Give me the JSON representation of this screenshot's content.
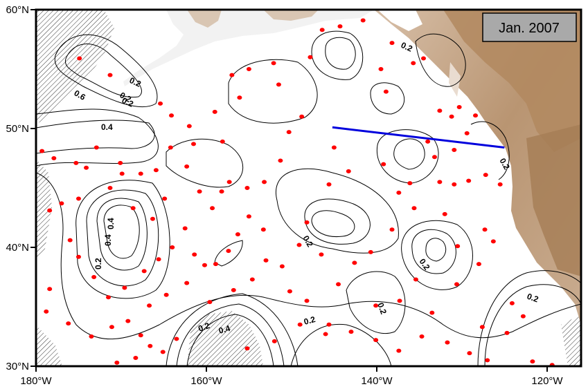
{
  "map": {
    "region": "North-East Pacific",
    "lon_range": [
      -180,
      -116
    ],
    "lat_range": [
      30,
      60
    ],
    "y_tick_labels": [
      "30°N",
      "40°N",
      "50°N",
      "60°N"
    ],
    "x_tick_labels": [
      "180°W",
      "160°W",
      "140°W",
      "120°W"
    ],
    "date_label": "Jan. 2007",
    "contour_labels": [
      "0.2",
      "0.4",
      "0.6",
      "0.2",
      "0.4",
      "0.4",
      "0.2",
      "0.2",
      "0.2",
      "0.2",
      "0.2",
      "0.2",
      "0.2",
      "0.2",
      "0.2",
      "0.2",
      "0.4"
    ],
    "colors": {
      "float": "#ff0000",
      "section_line": "#0000dd",
      "land": "#c8a98a",
      "land_high": "#9c7752",
      "date_box": "#a9a9a9"
    },
    "section_line": {
      "start": {
        "lon": -145.2,
        "lat": 50.1
      },
      "end": {
        "lon": -125.0,
        "lat": 48.4
      }
    },
    "float_positions": [
      {
        "lon": -174.9,
        "lat": 55.9
      },
      {
        "lon": -171.3,
        "lat": 54.5
      },
      {
        "lon": -165.4,
        "lat": 52.1
      },
      {
        "lon": -164.1,
        "lat": 51.1
      },
      {
        "lon": -179.3,
        "lat": 48.1
      },
      {
        "lon": -177.9,
        "lat": 47.5
      },
      {
        "lon": -175.3,
        "lat": 47.1
      },
      {
        "lon": -174.1,
        "lat": 46.7
      },
      {
        "lon": -172.9,
        "lat": 48.4
      },
      {
        "lon": -170.1,
        "lat": 47.1
      },
      {
        "lon": -169.9,
        "lat": 46.2
      },
      {
        "lon": -167.7,
        "lat": 46.2
      },
      {
        "lon": -165.9,
        "lat": 46.5
      },
      {
        "lon": -164.2,
        "lat": 48.4
      },
      {
        "lon": -162.0,
        "lat": 50.2
      },
      {
        "lon": -161.5,
        "lat": 48.7
      },
      {
        "lon": -159.0,
        "lat": 51.4
      },
      {
        "lon": -158.1,
        "lat": 48.9
      },
      {
        "lon": -157.0,
        "lat": 54.5
      },
      {
        "lon": -156.1,
        "lat": 52.6
      },
      {
        "lon": -155.0,
        "lat": 55.0
      },
      {
        "lon": -152.1,
        "lat": 55.5
      },
      {
        "lon": -151.5,
        "lat": 53.7
      },
      {
        "lon": -150.3,
        "lat": 49.7
      },
      {
        "lon": -148.8,
        "lat": 51.0
      },
      {
        "lon": -147.8,
        "lat": 56.0
      },
      {
        "lon": -146.4,
        "lat": 58.3
      },
      {
        "lon": -144.3,
        "lat": 58.6
      },
      {
        "lon": -141.6,
        "lat": 59.1
      },
      {
        "lon": -139.5,
        "lat": 55.0
      },
      {
        "lon": -138.9,
        "lat": 53.1
      },
      {
        "lon": -138.2,
        "lat": 57.2
      },
      {
        "lon": -135.7,
        "lat": 55.5
      },
      {
        "lon": -134.5,
        "lat": 55.9
      },
      {
        "lon": -132.6,
        "lat": 51.5
      },
      {
        "lon": -131.2,
        "lat": 51.0
      },
      {
        "lon": -130.3,
        "lat": 51.8
      },
      {
        "lon": -128.4,
        "lat": 51.1
      },
      {
        "lon": -129.4,
        "lat": 49.6
      },
      {
        "lon": -130.9,
        "lat": 48.2
      },
      {
        "lon": -133.2,
        "lat": 47.6
      },
      {
        "lon": -134.0,
        "lat": 48.9
      },
      {
        "lon": -136.1,
        "lat": 45.4
      },
      {
        "lon": -137.4,
        "lat": 44.6
      },
      {
        "lon": -139.2,
        "lat": 47.0
      },
      {
        "lon": -143.3,
        "lat": 46.4
      },
      {
        "lon": -145.6,
        "lat": 45.3
      },
      {
        "lon": -145.0,
        "lat": 48.4
      },
      {
        "lon": -151.3,
        "lat": 47.3
      },
      {
        "lon": -153.2,
        "lat": 45.5
      },
      {
        "lon": -155.2,
        "lat": 45.0
      },
      {
        "lon": -157.3,
        "lat": 45.5
      },
      {
        "lon": -158.2,
        "lat": 44.7
      },
      {
        "lon": -159.3,
        "lat": 43.3
      },
      {
        "lon": -160.8,
        "lat": 44.7
      },
      {
        "lon": -162.3,
        "lat": 46.8
      },
      {
        "lon": -164.9,
        "lat": 44.1
      },
      {
        "lon": -166.3,
        "lat": 42.4
      },
      {
        "lon": -168.6,
        "lat": 43.3
      },
      {
        "lon": -171.3,
        "lat": 45.0
      },
      {
        "lon": -175.0,
        "lat": 44.1
      },
      {
        "lon": -177.0,
        "lat": 43.7
      },
      {
        "lon": -178.4,
        "lat": 43.1
      },
      {
        "lon": -176.0,
        "lat": 40.6
      },
      {
        "lon": -175.0,
        "lat": 39.2
      },
      {
        "lon": -173.2,
        "lat": 37.5
      },
      {
        "lon": -171.5,
        "lat": 35.8
      },
      {
        "lon": -169.6,
        "lat": 36.6
      },
      {
        "lon": -167.3,
        "lat": 38.0
      },
      {
        "lon": -165.6,
        "lat": 39.0
      },
      {
        "lon": -164.0,
        "lat": 40.0
      },
      {
        "lon": -162.5,
        "lat": 41.6
      },
      {
        "lon": -161.4,
        "lat": 39.4
      },
      {
        "lon": -160.2,
        "lat": 38.5
      },
      {
        "lon": -158.9,
        "lat": 38.6
      },
      {
        "lon": -157.4,
        "lat": 39.7
      },
      {
        "lon": -156.3,
        "lat": 41.1
      },
      {
        "lon": -155.0,
        "lat": 42.6
      },
      {
        "lon": -153.3,
        "lat": 41.5
      },
      {
        "lon": -153.0,
        "lat": 38.9
      },
      {
        "lon": -154.6,
        "lat": 37.3
      },
      {
        "lon": -156.8,
        "lat": 36.4
      },
      {
        "lon": -159.6,
        "lat": 35.4
      },
      {
        "lon": -162.3,
        "lat": 37.0
      },
      {
        "lon": -164.7,
        "lat": 36.0
      },
      {
        "lon": -166.7,
        "lat": 35.1
      },
      {
        "lon": -169.2,
        "lat": 33.8
      },
      {
        "lon": -171.1,
        "lat": 33.3
      },
      {
        "lon": -173.5,
        "lat": 32.5
      },
      {
        "lon": -176.2,
        "lat": 33.6
      },
      {
        "lon": -178.8,
        "lat": 34.6
      },
      {
        "lon": -178.4,
        "lat": 36.5
      },
      {
        "lon": -167.7,
        "lat": 32.6
      },
      {
        "lon": -166.6,
        "lat": 31.7
      },
      {
        "lon": -165.1,
        "lat": 31.2
      },
      {
        "lon": -163.5,
        "lat": 32.3
      },
      {
        "lon": -170.5,
        "lat": 30.3
      },
      {
        "lon": -168.3,
        "lat": 30.7
      },
      {
        "lon": -155.2,
        "lat": 31.5
      },
      {
        "lon": -152.0,
        "lat": 32.1
      },
      {
        "lon": -149.0,
        "lat": 33.5
      },
      {
        "lon": -146.0,
        "lat": 32.7
      },
      {
        "lon": -143.0,
        "lat": 32.9
      },
      {
        "lon": -140.1,
        "lat": 32.2
      },
      {
        "lon": -137.4,
        "lat": 31.3
      },
      {
        "lon": -134.7,
        "lat": 32.5
      },
      {
        "lon": -131.7,
        "lat": 32.0
      },
      {
        "lon": -129.1,
        "lat": 31.1
      },
      {
        "lon": -127.0,
        "lat": 30.5
      },
      {
        "lon": -124.7,
        "lat": 32.8
      },
      {
        "lon": -122.8,
        "lat": 34.2
      },
      {
        "lon": -121.7,
        "lat": 30.4
      },
      {
        "lon": -119.4,
        "lat": 30.1
      },
      {
        "lon": -124.1,
        "lat": 35.3
      },
      {
        "lon": -127.6,
        "lat": 33.3
      },
      {
        "lon": -130.6,
        "lat": 36.9
      },
      {
        "lon": -133.5,
        "lat": 34.5
      },
      {
        "lon": -135.4,
        "lat": 37.3
      },
      {
        "lon": -137.3,
        "lat": 35.5
      },
      {
        "lon": -140.1,
        "lat": 35.1
      },
      {
        "lon": -142.6,
        "lat": 38.7
      },
      {
        "lon": -144.5,
        "lat": 36.9
      },
      {
        "lon": -145.6,
        "lat": 33.5
      },
      {
        "lon": -148.2,
        "lat": 35.5
      },
      {
        "lon": -150.2,
        "lat": 36.3
      },
      {
        "lon": -151.1,
        "lat": 38.4
      },
      {
        "lon": -149.1,
        "lat": 40.2
      },
      {
        "lon": -148.2,
        "lat": 42.1
      },
      {
        "lon": -146.5,
        "lat": 39.4
      },
      {
        "lon": -140.7,
        "lat": 39.6
      },
      {
        "lon": -138.2,
        "lat": 41.5
      },
      {
        "lon": -135.6,
        "lat": 43.3
      },
      {
        "lon": -132.0,
        "lat": 42.8
      },
      {
        "lon": -130.5,
        "lat": 40.1
      },
      {
        "lon": -128.0,
        "lat": 38.6
      },
      {
        "lon": -126.3,
        "lat": 40.5
      },
      {
        "lon": -127.3,
        "lat": 41.5
      },
      {
        "lon": -129.2,
        "lat": 45.6
      },
      {
        "lon": -130.9,
        "lat": 45.3
      },
      {
        "lon": -132.6,
        "lat": 45.5
      },
      {
        "lon": -127.2,
        "lat": 46.1
      },
      {
        "lon": -125.5,
        "lat": 45.3
      }
    ]
  }
}
